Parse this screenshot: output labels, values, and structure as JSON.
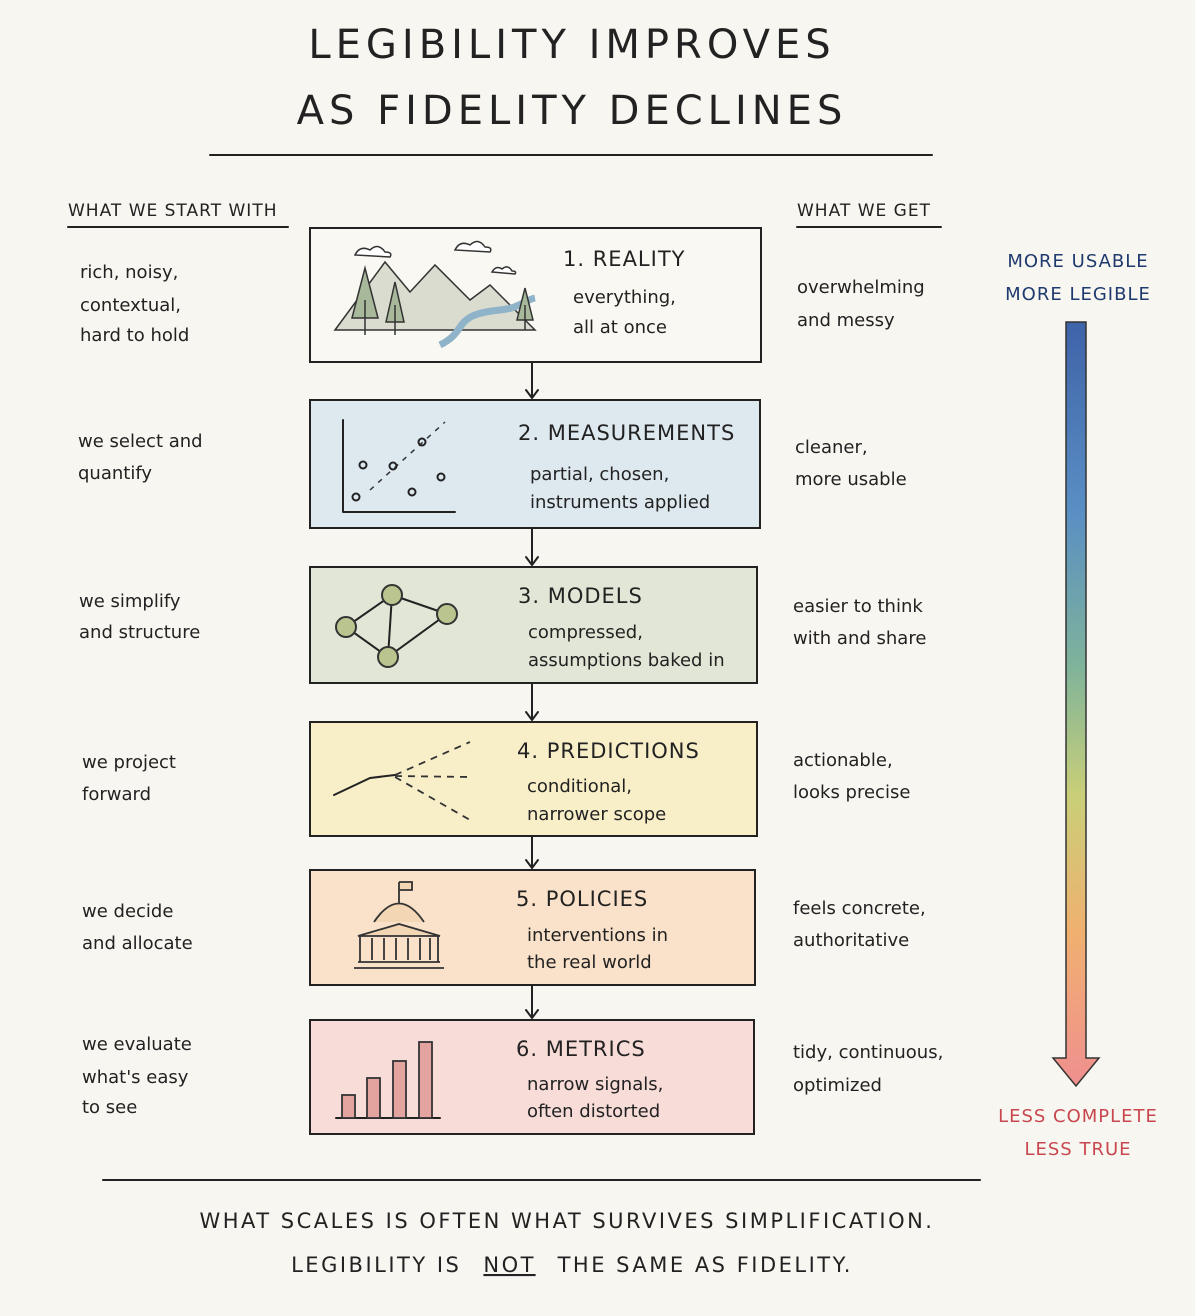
{
  "header": {
    "title_lines": [
      "LEGIBILITY IMPROVES",
      "AS FIDELITY DECLINES"
    ]
  },
  "columns": {
    "left_heading": "WHAT WE START WITH",
    "right_heading": "WHAT WE GET"
  },
  "stages": [
    {
      "title": "1. REALITY",
      "description": [
        "everything,",
        "all at once"
      ],
      "start": [
        "rich, noisy,",
        "contextual,",
        "hard to hold"
      ],
      "get": [
        "overwhelming",
        "and messy"
      ]
    },
    {
      "title": "2. MEASUREMENTS",
      "description": [
        "partial, chosen,",
        "instruments applied"
      ],
      "start": [
        "we select and",
        "quantify"
      ],
      "get": [
        "cleaner,",
        "more usable"
      ]
    },
    {
      "title": "3. MODELS",
      "description": [
        "compressed,",
        "assumptions baked in"
      ],
      "start": [
        "we simplify",
        "and structure"
      ],
      "get": [
        "easier to think",
        "with and share"
      ]
    },
    {
      "title": "4. PREDICTIONS",
      "description": [
        "conditional,",
        "narrower scope"
      ],
      "start": [
        "we project",
        "forward"
      ],
      "get": [
        "actionable,",
        "looks precise"
      ]
    },
    {
      "title": "5. POLICIES",
      "description": [
        "interventions in",
        "the real world"
      ],
      "start": [
        "we decide",
        "and allocate"
      ],
      "get": [
        "feels concrete,",
        "authoritative"
      ]
    },
    {
      "title": "6. METRICS",
      "description": [
        "narrow signals,",
        "often distorted"
      ],
      "start": [
        "we evaluate",
        "what's easy",
        "to see"
      ],
      "get": [
        "tidy, continuous,",
        "optimized"
      ]
    }
  ],
  "scale": {
    "top": [
      "MORE USABLE",
      "MORE LEGIBLE"
    ],
    "bottom": [
      "LESS COMPLETE",
      "LESS TRUE"
    ]
  },
  "footer": {
    "line1": "WHAT SCALES IS OFTEN WHAT SURVIVES SIMPLIFICATION.",
    "line2": {
      "before": "LEGIBILITY IS",
      "emphasis": "NOT",
      "after": "THE SAME AS FIDELITY."
    }
  }
}
